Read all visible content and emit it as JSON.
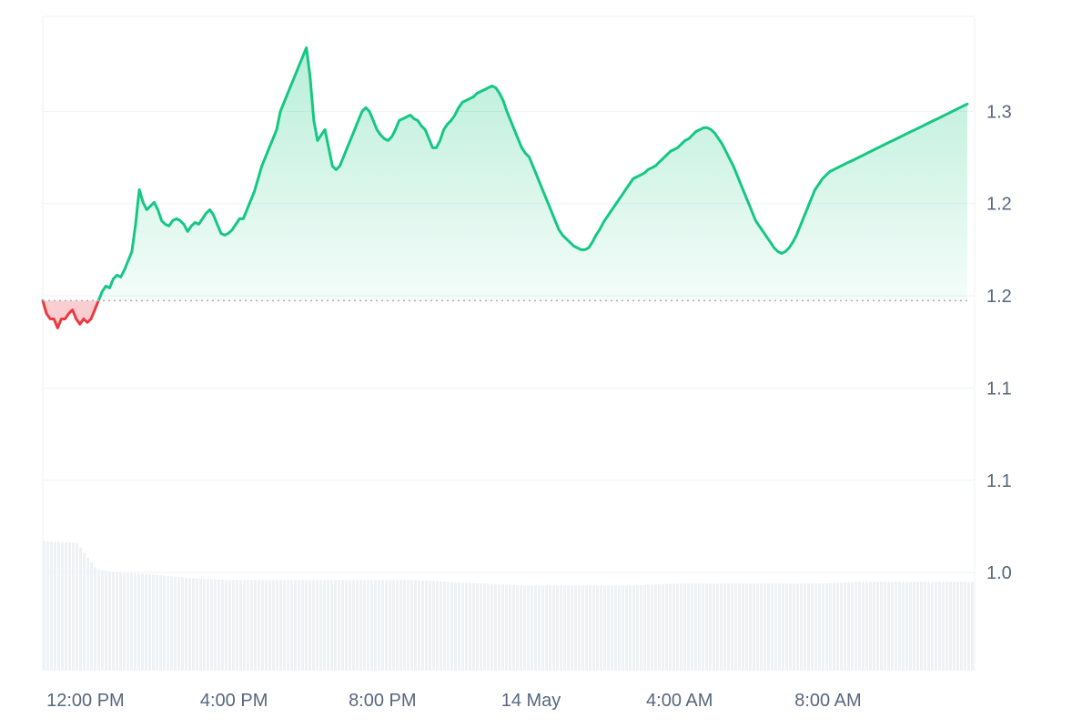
{
  "chart_data": {
    "type": "area",
    "baseline": 1.1474,
    "y_ticks": [
      {
        "value": 1.0,
        "label": "1.0"
      },
      {
        "value": 1.05,
        "label": "1.1"
      },
      {
        "value": 1.1,
        "label": "1.1"
      },
      {
        "value": 1.15,
        "label": "1.2"
      },
      {
        "value": 1.2,
        "label": "1.2"
      },
      {
        "value": 1.25,
        "label": "1.3"
      }
    ],
    "ylim": [
      0.9468,
      1.3015
    ],
    "x_ticks": [
      {
        "x": 11.25,
        "label": "12:00 PM"
      },
      {
        "x": 15.25,
        "label": "4:00 PM"
      },
      {
        "x": 19.25,
        "label": "8:00 PM"
      },
      {
        "x": 23.25,
        "label": "14 May"
      },
      {
        "x": 27.25,
        "label": "4:00 AM"
      },
      {
        "x": 31.25,
        "label": "8:00 AM"
      }
    ],
    "xlim": [
      10.1,
      35.1
    ],
    "grid": true,
    "legend": "none",
    "colors": {
      "up": "#16c784",
      "down": "#ea3943",
      "grid": "#eff2f5",
      "volume": "#eff2f5",
      "baseline": "#a6b0c3"
    },
    "series": [
      {
        "values": [
          [
            10.1,
            1.1474
          ],
          [
            10.2,
            1.1404
          ],
          [
            10.3,
            1.1375
          ],
          [
            10.4,
            1.1375
          ],
          [
            10.5,
            1.1326
          ],
          [
            10.6,
            1.1375
          ],
          [
            10.7,
            1.1375
          ],
          [
            10.8,
            1.1404
          ],
          [
            10.9,
            1.1424
          ],
          [
            11.0,
            1.1375
          ],
          [
            11.1,
            1.1346
          ],
          [
            11.2,
            1.1375
          ],
          [
            11.3,
            1.1356
          ],
          [
            11.4,
            1.1375
          ],
          [
            11.5,
            1.1424
          ],
          [
            11.6,
            1.1474
          ],
          [
            11.7,
            1.1523
          ],
          [
            11.8,
            1.1553
          ],
          [
            11.9,
            1.1543
          ],
          [
            12.0,
            1.1592
          ],
          [
            12.1,
            1.1612
          ],
          [
            12.2,
            1.1602
          ],
          [
            12.3,
            1.1641
          ],
          [
            12.4,
            1.1691
          ],
          [
            12.5,
            1.174
          ],
          [
            12.6,
            1.1888
          ],
          [
            12.7,
            1.2076
          ],
          [
            12.8,
            1.2007
          ],
          [
            12.9,
            1.1967
          ],
          [
            13.0,
            1.1987
          ],
          [
            13.1,
            1.2007
          ],
          [
            13.2,
            1.1967
          ],
          [
            13.3,
            1.1908
          ],
          [
            13.4,
            1.1888
          ],
          [
            13.5,
            1.1879
          ],
          [
            13.6,
            1.1908
          ],
          [
            13.7,
            1.1918
          ],
          [
            13.8,
            1.1908
          ],
          [
            13.9,
            1.1888
          ],
          [
            14.0,
            1.1849
          ],
          [
            14.1,
            1.1878
          ],
          [
            14.2,
            1.1898
          ],
          [
            14.3,
            1.1888
          ],
          [
            14.4,
            1.1918
          ],
          [
            14.5,
            1.1948
          ],
          [
            14.6,
            1.1967
          ],
          [
            14.7,
            1.1937
          ],
          [
            14.8,
            1.1888
          ],
          [
            14.9,
            1.1839
          ],
          [
            15.0,
            1.1829
          ],
          [
            15.1,
            1.1839
          ],
          [
            15.2,
            1.1858
          ],
          [
            15.3,
            1.1888
          ],
          [
            15.4,
            1.1918
          ],
          [
            15.5,
            1.1918
          ],
          [
            15.6,
            1.1967
          ],
          [
            15.7,
            1.2017
          ],
          [
            15.8,
            1.2066
          ],
          [
            15.9,
            1.2135
          ],
          [
            16.0,
            1.2204
          ],
          [
            16.1,
            1.2253
          ],
          [
            16.2,
            1.2303
          ],
          [
            16.3,
            1.2352
          ],
          [
            16.4,
            1.2401
          ],
          [
            16.5,
            1.25
          ],
          [
            16.6,
            1.2549
          ],
          [
            16.7,
            1.2599
          ],
          [
            16.8,
            1.2648
          ],
          [
            16.9,
            1.2697
          ],
          [
            17.0,
            1.2747
          ],
          [
            17.1,
            1.2796
          ],
          [
            17.2,
            1.2845
          ],
          [
            17.3,
            1.2687
          ],
          [
            17.4,
            1.2451
          ],
          [
            17.5,
            1.2342
          ],
          [
            17.6,
            1.2372
          ],
          [
            17.7,
            1.2401
          ],
          [
            17.8,
            1.2303
          ],
          [
            17.9,
            1.2204
          ],
          [
            18.0,
            1.2184
          ],
          [
            18.1,
            1.2204
          ],
          [
            18.2,
            1.2253
          ],
          [
            18.3,
            1.2303
          ],
          [
            18.4,
            1.2352
          ],
          [
            18.5,
            1.2401
          ],
          [
            18.6,
            1.2451
          ],
          [
            18.7,
            1.25
          ],
          [
            18.8,
            1.252
          ],
          [
            18.9,
            1.25
          ],
          [
            19.0,
            1.2451
          ],
          [
            19.1,
            1.2401
          ],
          [
            19.2,
            1.2372
          ],
          [
            19.3,
            1.2352
          ],
          [
            19.4,
            1.2342
          ],
          [
            19.5,
            1.2362
          ],
          [
            19.6,
            1.2401
          ],
          [
            19.7,
            1.2451
          ],
          [
            19.8,
            1.246
          ],
          [
            19.9,
            1.247
          ],
          [
            20.0,
            1.248
          ],
          [
            20.1,
            1.246
          ],
          [
            20.2,
            1.2451
          ],
          [
            20.3,
            1.2421
          ],
          [
            20.4,
            1.2401
          ],
          [
            20.5,
            1.2352
          ],
          [
            20.6,
            1.2303
          ],
          [
            20.7,
            1.2303
          ],
          [
            20.8,
            1.2342
          ],
          [
            20.9,
            1.2401
          ],
          [
            21.0,
            1.2431
          ],
          [
            21.1,
            1.2451
          ],
          [
            21.2,
            1.248
          ],
          [
            21.3,
            1.252
          ],
          [
            21.4,
            1.2549
          ],
          [
            21.5,
            1.2559
          ],
          [
            21.6,
            1.2569
          ],
          [
            21.7,
            1.2579
          ],
          [
            21.8,
            1.2599
          ],
          [
            21.9,
            1.2608
          ],
          [
            22.0,
            1.2618
          ],
          [
            22.1,
            1.2628
          ],
          [
            22.2,
            1.2638
          ],
          [
            22.3,
            1.2628
          ],
          [
            22.4,
            1.2599
          ],
          [
            22.5,
            1.2559
          ],
          [
            22.6,
            1.25
          ],
          [
            22.7,
            1.2451
          ],
          [
            22.8,
            1.2401
          ],
          [
            22.9,
            1.2352
          ],
          [
            23.0,
            1.2303
          ],
          [
            23.1,
            1.2273
          ],
          [
            23.2,
            1.2253
          ],
          [
            23.3,
            1.2204
          ],
          [
            23.4,
            1.2155
          ],
          [
            23.5,
            1.2105
          ],
          [
            23.6,
            1.2056
          ],
          [
            23.7,
            1.2007
          ],
          [
            23.8,
            1.1958
          ],
          [
            23.9,
            1.1908
          ],
          [
            24.0,
            1.1859
          ],
          [
            24.1,
            1.1829
          ],
          [
            24.2,
            1.1809
          ],
          [
            24.3,
            1.179
          ],
          [
            24.4,
            1.177
          ],
          [
            24.5,
            1.176
          ],
          [
            24.6,
            1.175
          ],
          [
            24.7,
            1.175
          ],
          [
            24.8,
            1.176
          ],
          [
            24.9,
            1.179
          ],
          [
            25.0,
            1.1829
          ],
          [
            25.1,
            1.1859
          ],
          [
            25.2,
            1.1898
          ],
          [
            25.3,
            1.1928
          ],
          [
            25.4,
            1.1958
          ],
          [
            25.5,
            1.1987
          ],
          [
            25.6,
            1.2017
          ],
          [
            25.7,
            1.2046
          ],
          [
            25.8,
            1.2076
          ],
          [
            25.9,
            1.2105
          ],
          [
            26.0,
            1.2135
          ],
          [
            26.1,
            1.2145
          ],
          [
            26.2,
            1.2155
          ],
          [
            26.3,
            1.2165
          ],
          [
            26.4,
            1.2184
          ],
          [
            26.5,
            1.2194
          ],
          [
            26.6,
            1.2204
          ],
          [
            26.7,
            1.2224
          ],
          [
            26.8,
            1.2243
          ],
          [
            26.9,
            1.2263
          ],
          [
            27.0,
            1.2283
          ],
          [
            27.1,
            1.2293
          ],
          [
            27.2,
            1.2303
          ],
          [
            27.3,
            1.2323
          ],
          [
            27.4,
            1.2342
          ],
          [
            27.5,
            1.2352
          ],
          [
            27.6,
            1.2372
          ],
          [
            27.7,
            1.2392
          ],
          [
            27.8,
            1.2401
          ],
          [
            27.9,
            1.2411
          ],
          [
            28.0,
            1.2411
          ],
          [
            28.1,
            1.2401
          ],
          [
            28.2,
            1.2382
          ],
          [
            28.3,
            1.2352
          ],
          [
            28.4,
            1.2323
          ],
          [
            28.5,
            1.2283
          ],
          [
            28.6,
            1.2243
          ],
          [
            28.7,
            1.2204
          ],
          [
            28.8,
            1.2155
          ],
          [
            28.9,
            1.2105
          ],
          [
            29.0,
            1.2056
          ],
          [
            29.1,
            1.2007
          ],
          [
            29.2,
            1.1958
          ],
          [
            29.3,
            1.1908
          ],
          [
            29.4,
            1.1878
          ],
          [
            29.5,
            1.1849
          ],
          [
            29.6,
            1.1819
          ],
          [
            29.7,
            1.179
          ],
          [
            29.8,
            1.176
          ],
          [
            29.9,
            1.174
          ],
          [
            30.0,
            1.173
          ],
          [
            30.1,
            1.174
          ],
          [
            30.2,
            1.176
          ],
          [
            30.3,
            1.179
          ],
          [
            30.4,
            1.1829
          ],
          [
            30.5,
            1.1878
          ],
          [
            30.6,
            1.1928
          ],
          [
            30.7,
            1.1977
          ],
          [
            30.8,
            1.2027
          ],
          [
            30.9,
            1.2076
          ],
          [
            31.0,
            1.2105
          ],
          [
            31.1,
            1.2135
          ],
          [
            31.2,
            1.2155
          ],
          [
            31.3,
            1.2174
          ],
          [
            31.4,
            1.2184
          ],
          [
            31.5,
            1.2194
          ],
          [
            31.6,
            1.2204
          ],
          [
            31.7,
            1.2214
          ],
          [
            31.8,
            1.2224
          ],
          [
            31.9,
            1.2233
          ],
          [
            32.0,
            1.2243
          ],
          [
            32.1,
            1.2253
          ],
          [
            32.2,
            1.2263
          ],
          [
            32.3,
            1.2273
          ],
          [
            32.4,
            1.2283
          ],
          [
            32.5,
            1.2293
          ],
          [
            32.6,
            1.2303
          ],
          [
            32.7,
            1.2313
          ],
          [
            32.8,
            1.2323
          ],
          [
            32.9,
            1.2333
          ],
          [
            33.0,
            1.2342
          ],
          [
            33.1,
            1.2352
          ],
          [
            33.2,
            1.2362
          ],
          [
            33.3,
            1.2372
          ],
          [
            33.4,
            1.2382
          ],
          [
            33.5,
            1.2392
          ],
          [
            33.6,
            1.2401
          ],
          [
            33.7,
            1.2411
          ],
          [
            33.8,
            1.2421
          ],
          [
            33.9,
            1.2431
          ],
          [
            34.0,
            1.2441
          ],
          [
            34.1,
            1.2451
          ],
          [
            34.2,
            1.246
          ],
          [
            34.3,
            1.247
          ],
          [
            34.4,
            1.248
          ],
          [
            34.5,
            1.249
          ],
          [
            34.6,
            1.25
          ],
          [
            34.7,
            1.251
          ],
          [
            34.8,
            1.252
          ],
          [
            34.9,
            1.253
          ],
          [
            35.0,
            1.254
          ]
        ]
      }
    ]
  }
}
